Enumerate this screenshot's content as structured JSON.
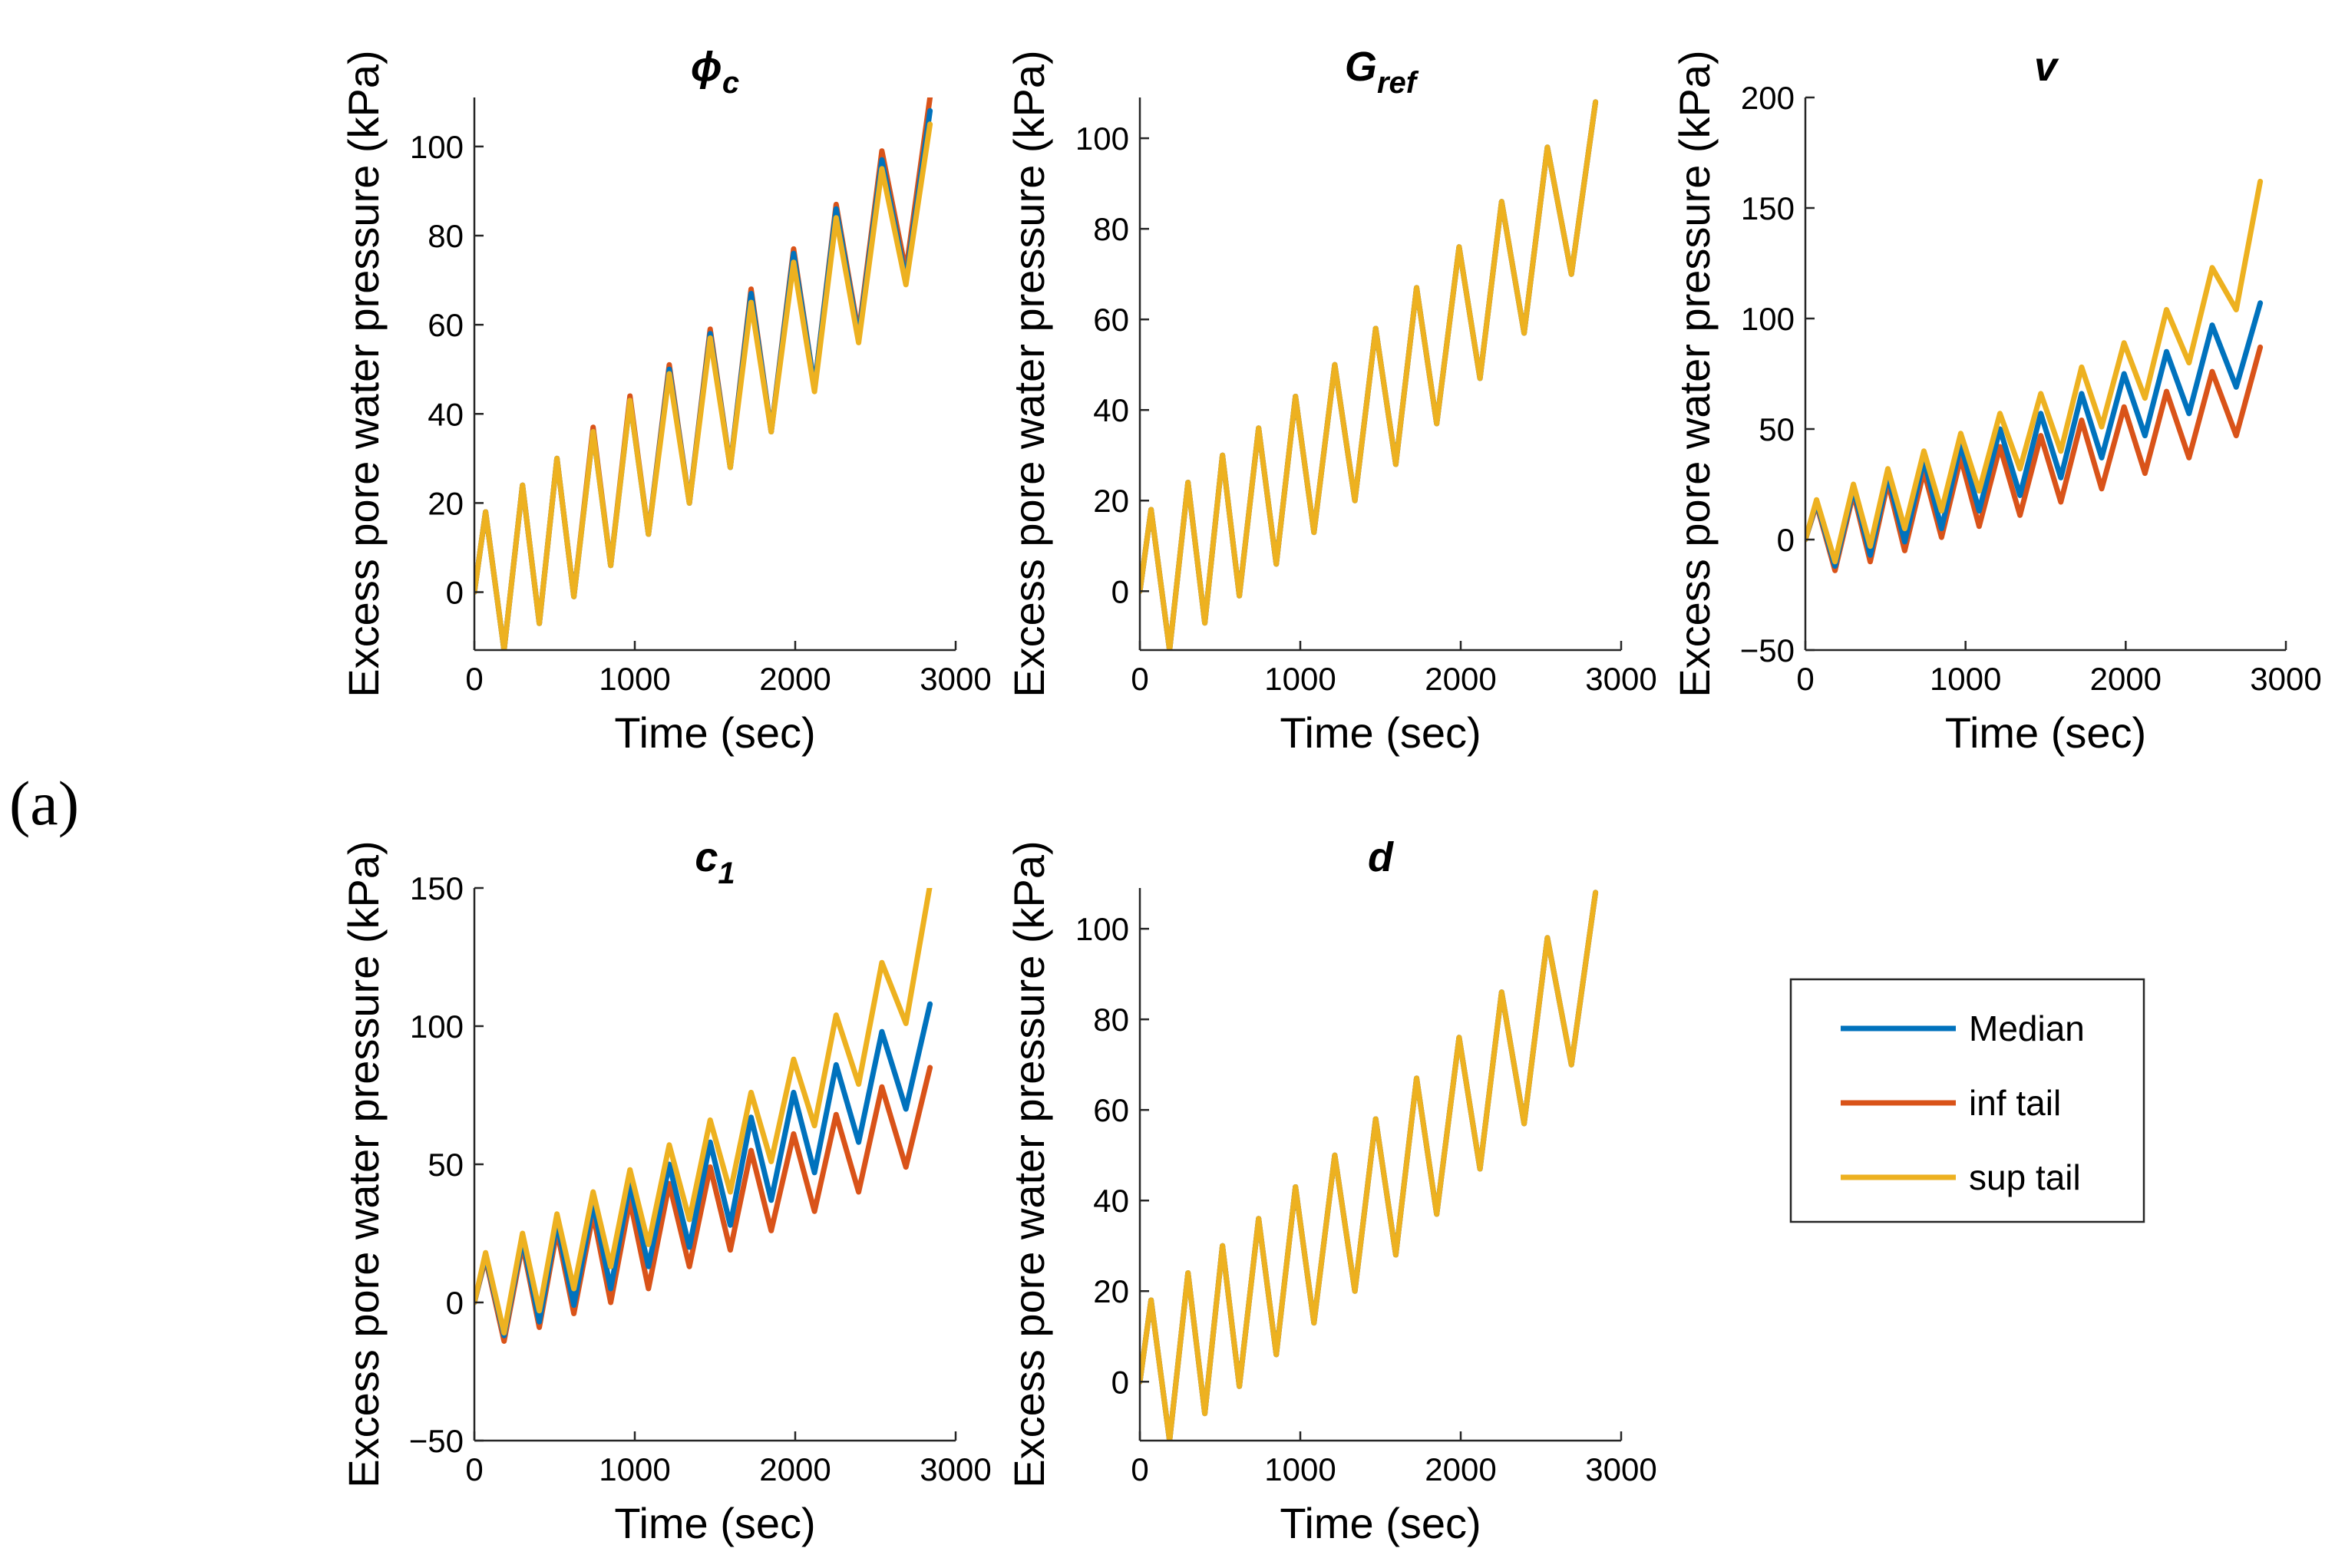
{
  "panel_label": "(a)",
  "axis_text": {
    "xlabel": "Time (sec)",
    "ylabel": "Excess pore water pressure (kPa)"
  },
  "legend": {
    "position": "right",
    "entries": [
      {
        "name": "Median",
        "color": "#0072BD"
      },
      {
        "name": "inf tail",
        "color": "#D95319"
      },
      {
        "name": "sup tail",
        "color": "#EDB120"
      }
    ]
  },
  "chart_data": [
    {
      "id": "phi_c",
      "type": "line",
      "title": "ϕ",
      "title_sub": "c",
      "xlabel": "Time (sec)",
      "ylabel": "Excess pore water pressure (kPa)",
      "xlim": [
        0,
        3000
      ],
      "ylim": [
        -13,
        111
      ],
      "xticks": [
        0,
        1000,
        2000,
        3000
      ],
      "yticks": [
        0,
        20,
        40,
        60,
        80,
        100
      ],
      "xticklabels": [
        "0",
        "1000",
        "2000",
        "3000"
      ],
      "yticklabels": [
        "0",
        "20",
        "40",
        "60",
        "80",
        "100"
      ],
      "series": [
        {
          "name": "Median",
          "color": "#0072BD",
          "x": [
            0,
            70,
            185,
            300,
            405,
            515,
            620,
            740,
            850,
            970,
            1085,
            1215,
            1340,
            1470,
            1595,
            1725,
            1850,
            1990,
            2120,
            2255,
            2395,
            2540,
            2690,
            2840
          ],
          "y": [
            0,
            18,
            -13,
            24,
            -7,
            30,
            -1,
            36,
            6,
            43,
            13,
            50,
            20,
            58,
            28,
            67,
            36,
            76,
            46,
            86,
            57,
            97,
            70,
            108
          ]
        },
        {
          "name": "inf tail",
          "color": "#D95319",
          "x": [
            0,
            70,
            185,
            300,
            405,
            515,
            620,
            740,
            850,
            970,
            1085,
            1215,
            1340,
            1470,
            1595,
            1725,
            1850,
            1990,
            2120,
            2255,
            2395,
            2540,
            2690,
            2840
          ],
          "y": [
            0,
            18,
            -13,
            24,
            -7,
            30,
            -1,
            37,
            6,
            44,
            13,
            51,
            20,
            59,
            28,
            68,
            36,
            77,
            46,
            87,
            58,
            99,
            72,
            111
          ]
        },
        {
          "name": "sup tail",
          "color": "#EDB120",
          "x": [
            0,
            70,
            185,
            300,
            405,
            515,
            620,
            740,
            850,
            970,
            1085,
            1215,
            1340,
            1470,
            1595,
            1725,
            1850,
            1990,
            2120,
            2255,
            2395,
            2540,
            2690,
            2840
          ],
          "y": [
            0,
            18,
            -13,
            24,
            -7,
            30,
            -1,
            36,
            6,
            43,
            13,
            49,
            20,
            57,
            28,
            65,
            36,
            74,
            45,
            84,
            56,
            95,
            69,
            105
          ]
        }
      ]
    },
    {
      "id": "G_ref",
      "type": "line",
      "title": "G",
      "title_sub": "ref",
      "xlabel": "Time (sec)",
      "ylabel": "Excess pore water pressure (kPa)",
      "xlim": [
        0,
        3000
      ],
      "ylim": [
        -13,
        109
      ],
      "xticks": [
        0,
        1000,
        2000,
        3000
      ],
      "yticks": [
        0,
        20,
        40,
        60,
        80,
        100
      ],
      "xticklabels": [
        "0",
        "1000",
        "2000",
        "3000"
      ],
      "yticklabels": [
        "0",
        "20",
        "40",
        "60",
        "80",
        "100"
      ],
      "series": [
        {
          "name": "Median",
          "color": "#0072BD",
          "x": [
            0,
            70,
            185,
            300,
            405,
            515,
            620,
            740,
            850,
            970,
            1085,
            1215,
            1340,
            1470,
            1595,
            1725,
            1850,
            1990,
            2120,
            2255,
            2395,
            2540,
            2690,
            2840
          ],
          "y": [
            0,
            18,
            -13,
            24,
            -7,
            30,
            -1,
            36,
            6,
            43,
            13,
            50,
            20,
            58,
            28,
            67,
            37,
            76,
            47,
            86,
            57,
            98,
            70,
            108
          ]
        },
        {
          "name": "inf tail",
          "color": "#D95319",
          "x": [
            0,
            70,
            185,
            300,
            405,
            515,
            620,
            740,
            850,
            970,
            1085,
            1215,
            1340,
            1470,
            1595,
            1725,
            1850,
            1990,
            2120,
            2255,
            2395,
            2540,
            2690,
            2840
          ],
          "y": [
            0,
            18,
            -13,
            24,
            -7,
            30,
            -1,
            36,
            6,
            43,
            13,
            50,
            20,
            58,
            28,
            67,
            37,
            76,
            47,
            86,
            57,
            98,
            70,
            108
          ]
        },
        {
          "name": "sup tail",
          "color": "#EDB120",
          "x": [
            0,
            70,
            185,
            300,
            405,
            515,
            620,
            740,
            850,
            970,
            1085,
            1215,
            1340,
            1470,
            1595,
            1725,
            1850,
            1990,
            2120,
            2255,
            2395,
            2540,
            2690,
            2840
          ],
          "y": [
            0,
            18,
            -13,
            24,
            -7,
            30,
            -1,
            36,
            6,
            43,
            13,
            50,
            20,
            58,
            28,
            67,
            37,
            76,
            47,
            86,
            57,
            98,
            70,
            108
          ]
        }
      ]
    },
    {
      "id": "v",
      "type": "line",
      "title": "v",
      "title_sub": "",
      "xlabel": "Time (sec)",
      "ylabel": "Excess pore water pressure (kPa)",
      "xlim": [
        0,
        3000
      ],
      "ylim": [
        -50,
        200
      ],
      "xticks": [
        0,
        1000,
        2000,
        3000
      ],
      "yticks": [
        -50,
        0,
        50,
        100,
        150,
        200
      ],
      "xticklabels": [
        "0",
        "1000",
        "2000",
        "3000"
      ],
      "yticklabels": [
        "−50",
        "0",
        "50",
        "100",
        "150",
        "200"
      ],
      "series": [
        {
          "name": "Median",
          "color": "#0072BD",
          "x": [
            0,
            70,
            185,
            300,
            405,
            515,
            620,
            740,
            850,
            970,
            1085,
            1215,
            1340,
            1470,
            1595,
            1725,
            1850,
            1990,
            2120,
            2255,
            2395,
            2540,
            2690,
            2840
          ],
          "y": [
            0,
            17,
            -12,
            23,
            -7,
            29,
            -1,
            36,
            5,
            43,
            13,
            50,
            20,
            57,
            28,
            66,
            37,
            75,
            47,
            85,
            57,
            97,
            69,
            107
          ]
        },
        {
          "name": "inf tail",
          "color": "#D95319",
          "x": [
            0,
            70,
            185,
            300,
            405,
            515,
            620,
            740,
            850,
            970,
            1085,
            1215,
            1340,
            1470,
            1595,
            1725,
            1850,
            1990,
            2120,
            2255,
            2395,
            2540,
            2690,
            2840
          ],
          "y": [
            0,
            16,
            -14,
            21,
            -10,
            26,
            -5,
            31,
            1,
            37,
            6,
            42,
            11,
            47,
            17,
            54,
            23,
            60,
            30,
            67,
            37,
            76,
            47,
            87
          ]
        },
        {
          "name": "sup tail",
          "color": "#EDB120",
          "x": [
            0,
            70,
            185,
            300,
            405,
            515,
            620,
            740,
            850,
            970,
            1085,
            1215,
            1340,
            1470,
            1595,
            1725,
            1850,
            1990,
            2120,
            2255,
            2395,
            2540,
            2690,
            2840
          ],
          "y": [
            0,
            18,
            -10,
            25,
            -3,
            32,
            5,
            40,
            13,
            48,
            22,
            57,
            32,
            66,
            40,
            78,
            51,
            89,
            64,
            104,
            80,
            123,
            104,
            162
          ]
        }
      ]
    },
    {
      "id": "c_1",
      "type": "line",
      "title": "c",
      "title_sub": "1",
      "xlabel": "Time (sec)",
      "ylabel": "Excess pore water pressure (kPa)",
      "xlim": [
        0,
        3000
      ],
      "ylim": [
        -50,
        150
      ],
      "xticks": [
        0,
        1000,
        2000,
        3000
      ],
      "yticks": [
        -50,
        0,
        50,
        100,
        150
      ],
      "xticklabels": [
        "0",
        "1000",
        "2000",
        "3000"
      ],
      "yticklabels": [
        "−50",
        "0",
        "50",
        "100",
        "150"
      ],
      "series": [
        {
          "name": "Median",
          "color": "#0072BD",
          "x": [
            0,
            70,
            185,
            300,
            405,
            515,
            620,
            740,
            850,
            970,
            1085,
            1215,
            1340,
            1470,
            1595,
            1725,
            1850,
            1990,
            2120,
            2255,
            2395,
            2540,
            2690,
            2840
          ],
          "y": [
            0,
            17,
            -12,
            23,
            -7,
            29,
            -1,
            36,
            5,
            43,
            13,
            50,
            20,
            58,
            28,
            67,
            37,
            76,
            47,
            86,
            58,
            98,
            70,
            108
          ]
        },
        {
          "name": "inf tail",
          "color": "#D95319",
          "x": [
            0,
            70,
            185,
            300,
            405,
            515,
            620,
            740,
            850,
            970,
            1085,
            1215,
            1340,
            1470,
            1595,
            1725,
            1850,
            1990,
            2120,
            2255,
            2395,
            2540,
            2690,
            2840
          ],
          "y": [
            0,
            16,
            -14,
            21,
            -9,
            26,
            -4,
            32,
            0,
            37,
            5,
            43,
            13,
            49,
            19,
            55,
            26,
            61,
            33,
            68,
            40,
            78,
            49,
            85
          ]
        },
        {
          "name": "sup tail",
          "color": "#EDB120",
          "x": [
            0,
            70,
            185,
            300,
            405,
            515,
            620,
            740,
            850,
            970,
            1085,
            1215,
            1340,
            1470,
            1595,
            1725,
            1850,
            1990,
            2120,
            2255,
            2395,
            2540,
            2690,
            2840
          ],
          "y": [
            0,
            18,
            -11,
            25,
            -3,
            32,
            5,
            40,
            13,
            48,
            21,
            57,
            30,
            66,
            40,
            76,
            51,
            88,
            64,
            104,
            79,
            123,
            101,
            151
          ]
        }
      ]
    },
    {
      "id": "d",
      "type": "line",
      "title": "d",
      "title_sub": "",
      "xlabel": "Time (sec)",
      "ylabel": "Excess pore water pressure (kPa)",
      "xlim": [
        0,
        3000
      ],
      "ylim": [
        -13,
        109
      ],
      "xticks": [
        0,
        1000,
        2000,
        3000
      ],
      "yticks": [
        0,
        20,
        40,
        60,
        80,
        100
      ],
      "xticklabels": [
        "0",
        "1000",
        "2000",
        "3000"
      ],
      "yticklabels": [
        "0",
        "20",
        "40",
        "60",
        "80",
        "100"
      ],
      "series": [
        {
          "name": "Median",
          "color": "#0072BD",
          "x": [
            0,
            70,
            185,
            300,
            405,
            515,
            620,
            740,
            850,
            970,
            1085,
            1215,
            1340,
            1470,
            1595,
            1725,
            1850,
            1990,
            2120,
            2255,
            2395,
            2540,
            2690,
            2840
          ],
          "y": [
            0,
            18,
            -13,
            24,
            -7,
            30,
            -1,
            36,
            6,
            43,
            13,
            50,
            20,
            58,
            28,
            67,
            37,
            76,
            47,
            86,
            57,
            98,
            70,
            108
          ]
        },
        {
          "name": "inf tail",
          "color": "#D95319",
          "x": [
            0,
            70,
            185,
            300,
            405,
            515,
            620,
            740,
            850,
            970,
            1085,
            1215,
            1340,
            1470,
            1595,
            1725,
            1850,
            1990,
            2120,
            2255,
            2395,
            2540,
            2690,
            2840
          ],
          "y": [
            0,
            18,
            -13,
            24,
            -7,
            30,
            -1,
            36,
            6,
            43,
            13,
            50,
            20,
            58,
            28,
            67,
            37,
            76,
            47,
            86,
            57,
            98,
            70,
            108
          ]
        },
        {
          "name": "sup tail",
          "color": "#EDB120",
          "x": [
            0,
            70,
            185,
            300,
            405,
            515,
            620,
            740,
            850,
            970,
            1085,
            1215,
            1340,
            1470,
            1595,
            1725,
            1850,
            1990,
            2120,
            2255,
            2395,
            2540,
            2690,
            2840
          ],
          "y": [
            0,
            18,
            -13,
            24,
            -7,
            30,
            -1,
            36,
            6,
            43,
            13,
            50,
            20,
            58,
            28,
            67,
            37,
            76,
            47,
            86,
            57,
            98,
            70,
            108
          ]
        }
      ]
    }
  ]
}
